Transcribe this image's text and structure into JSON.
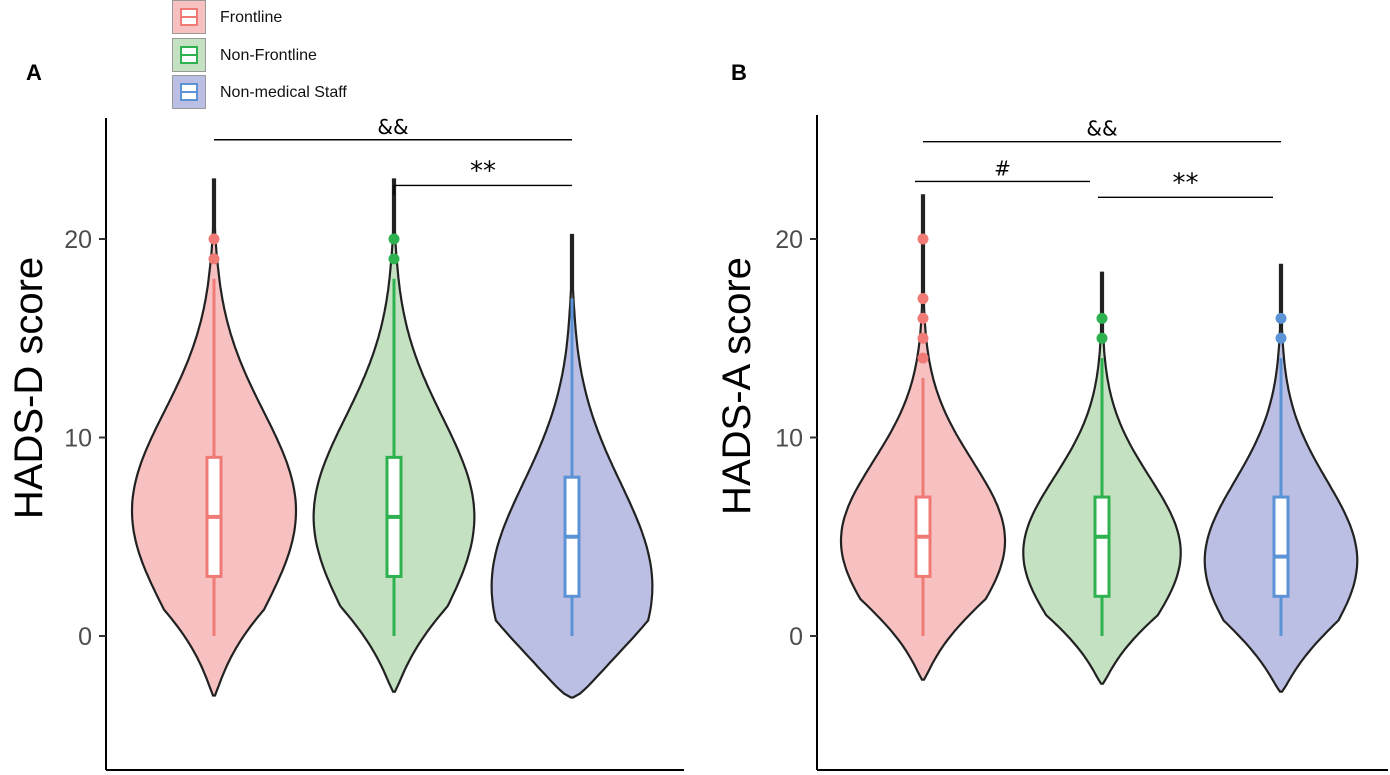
{
  "legend": [
    {
      "label": "Frontline",
      "fill": "#f8c1c1",
      "line": "#f07a76"
    },
    {
      "label": "Non-Frontline",
      "fill": "#c4e2c2",
      "line": "#2eb14f"
    },
    {
      "label": "Non-medical Staff",
      "fill": "#bbbfe3",
      "line": "#5b93d6"
    }
  ],
  "chart_data": [
    {
      "type": "violin",
      "panel_label": "A",
      "ylabel": "HADS-D score",
      "yticks": [
        0,
        10,
        20
      ],
      "ylim": [
        -6.5,
        26
      ],
      "groups": [
        "Frontline",
        "Non-Frontline",
        "Non-medical Staff"
      ],
      "violin_range": [
        [
          -3,
          23
        ],
        [
          -2.8,
          23
        ],
        [
          -3.1,
          20.2
        ]
      ],
      "boxes": [
        {
          "group": "Frontline",
          "min": 0,
          "q1": 3,
          "median": 6,
          "q3": 9,
          "max": 18,
          "outliers": [
            19,
            20
          ]
        },
        {
          "group": "Non-Frontline",
          "min": 0,
          "q1": 3,
          "median": 6,
          "q3": 9,
          "max": 18,
          "outliers": [
            19,
            20
          ]
        },
        {
          "group": "Non-medical Staff",
          "min": 0,
          "q1": 2,
          "median": 5,
          "q3": 8,
          "max": 17,
          "outliers": []
        }
      ],
      "annotations": [
        {
          "text": "&&",
          "from": "Frontline",
          "to": "Non-medical Staff",
          "y": 25
        },
        {
          "text": "**",
          "from": "Non-Frontline",
          "to": "Non-medical Staff",
          "y": 22.7
        }
      ]
    },
    {
      "type": "violin",
      "panel_label": "B",
      "ylabel": "HADS-A score",
      "yticks": [
        0,
        10,
        20
      ],
      "ylim": [
        -6.8,
        26.2
      ],
      "groups": [
        "Frontline",
        "Non-Frontline",
        "Non-medical Staff"
      ],
      "violin_range": [
        [
          -2.2,
          22.2
        ],
        [
          -2.4,
          18.3
        ],
        [
          -2.8,
          18.7
        ]
      ],
      "boxes": [
        {
          "group": "Frontline",
          "min": 0,
          "q1": 3,
          "median": 5,
          "q3": 7,
          "max": 13,
          "outliers": [
            14,
            15,
            16,
            17,
            20
          ]
        },
        {
          "group": "Non-Frontline",
          "min": 0,
          "q1": 2,
          "median": 5,
          "q3": 7,
          "max": 14,
          "outliers": [
            15,
            16
          ]
        },
        {
          "group": "Non-medical Staff",
          "min": 0,
          "q1": 2,
          "median": 4,
          "q3": 7,
          "max": 14,
          "outliers": [
            15,
            16
          ]
        }
      ],
      "annotations": [
        {
          "text": "&&",
          "from": "Frontline",
          "to": "Non-medical Staff",
          "y": 24.9
        },
        {
          "text": "#",
          "from": "Frontline",
          "to": "Non-Frontline",
          "y": 22.9
        },
        {
          "text": "**",
          "from": "Non-Frontline",
          "to": "Non-medical Staff",
          "y": 22.1
        }
      ]
    }
  ]
}
